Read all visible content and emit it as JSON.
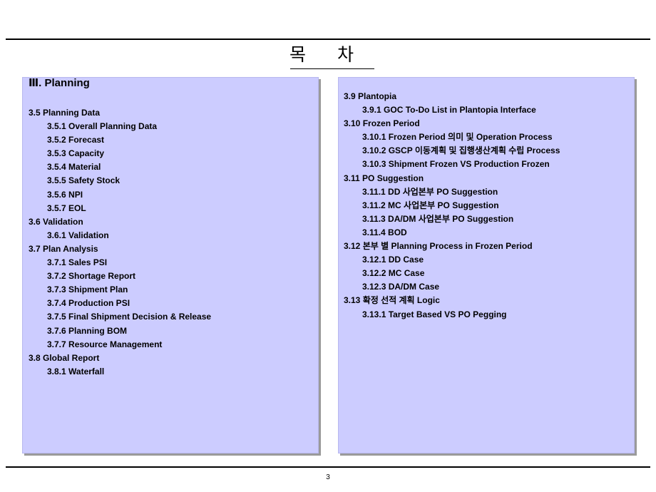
{
  "title": "목 차",
  "section_heading": "Ⅲ. Planning",
  "left_items": [
    {
      "text": "3.5 Planning Data",
      "level": 1
    },
    {
      "text": "3.5.1 Overall Planning Data",
      "level": 2
    },
    {
      "text": "3.5.2 Forecast",
      "level": 2
    },
    {
      "text": "3.5.3 Capacity",
      "level": 2
    },
    {
      "text": "3.5.4 Material",
      "level": 2
    },
    {
      "text": "3.5.5 Safety Stock",
      "level": 2
    },
    {
      "text": "3.5.6 NPI",
      "level": 2
    },
    {
      "text": "3.5.7 EOL",
      "level": 2
    },
    {
      "text": "3.6 Validation",
      "level": 1
    },
    {
      "text": "3.6.1 Validation",
      "level": 2
    },
    {
      "text": "3.7 Plan Analysis",
      "level": 1
    },
    {
      "text": "3.7.1 Sales PSI",
      "level": 2
    },
    {
      "text": "3.7.2 Shortage Report",
      "level": 2
    },
    {
      "text": "3.7.3 Shipment Plan",
      "level": 2
    },
    {
      "text": "3.7.4 Production PSI",
      "level": 2
    },
    {
      "text": "3.7.5 Final Shipment Decision & Release",
      "level": 2
    },
    {
      "text": "3.7.6 Planning BOM",
      "level": 2
    },
    {
      "text": "3.7.7 Resource Management",
      "level": 2
    },
    {
      "text": "3.8 Global Report",
      "level": 1
    },
    {
      "text": "3.8.1 Waterfall",
      "level": 2
    }
  ],
  "right_items": [
    {
      "text": "3.9 Plantopia",
      "level": 1
    },
    {
      "text": "3.9.1 GOC To-Do List in Plantopia Interface",
      "level": 2
    },
    {
      "text": "3.10 Frozen Period",
      "level": 1
    },
    {
      "text": "3.10.1 Frozen Period 의미 및 Operation Process",
      "level": 2
    },
    {
      "text": "3.10.2 GSCP 이동계획 및 집행생산계획 수립 Process",
      "level": 2
    },
    {
      "text": "3.10.3 Shipment Frozen VS Production Frozen",
      "level": 2
    },
    {
      "text": "3.11 PO Suggestion",
      "level": 1
    },
    {
      "text": "3.11.1 DD 사업본부 PO Suggestion",
      "level": 2
    },
    {
      "text": "3.11.2 MC 사업본부 PO Suggestion",
      "level": 2
    },
    {
      "text": "3.11.3 DA/DM 사업본부 PO Suggestion",
      "level": 2
    },
    {
      "text": "3.11.4 BOD",
      "level": 2
    },
    {
      "text": "3.12 본부 별 Planning Process in Frozen Period",
      "level": 1
    },
    {
      "text": "3.12.1 DD Case",
      "level": 2
    },
    {
      "text": "3.12.2 MC Case",
      "level": 2
    },
    {
      "text": "3.12.3 DA/DM Case",
      "level": 2
    },
    {
      "text": "3.13 확정 선적 계획 Logic",
      "level": 1
    },
    {
      "text": "3.13.1 Target Based VS PO Pegging",
      "level": 2
    }
  ],
  "page_number": "3",
  "colors": {
    "panel_bg": "#ccccff",
    "panel_shadow": "#9a9a9a"
  }
}
